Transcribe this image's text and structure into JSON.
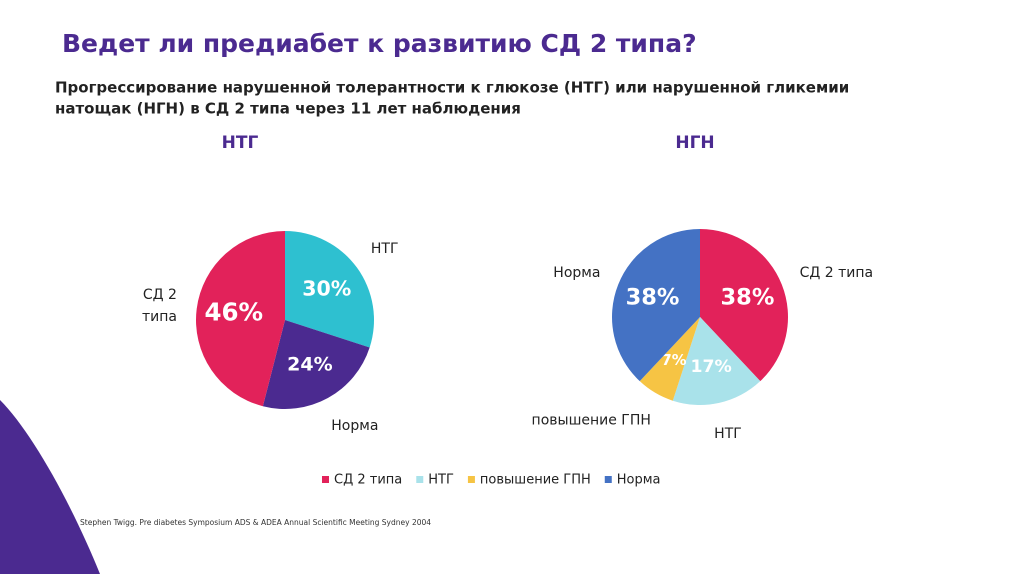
{
  "title": "Ведет ли предиабет к развитию СД 2 типа?",
  "subtitle": [
    "Прогрессирование нарушенной толерантности к глюкозе (НТГ) или нарушенной гликемии",
    "натощак (НГН) в СД 2 типа через 11 лет наблюдения"
  ],
  "chart_data": [
    {
      "type": "pie",
      "title": "НТГ",
      "categories": [
        "НТГ",
        "Норма",
        "СД 2 типа"
      ],
      "values": [
        30,
        24,
        46
      ],
      "value_labels": [
        "30%",
        "24%",
        "46%"
      ],
      "colors": [
        "#2ec0d0",
        "#4b2a90",
        "#e2225a"
      ]
    },
    {
      "type": "pie",
      "title": "НГН",
      "categories": [
        "СД 2 типа",
        "НТГ",
        "повышение ГПН",
        "Норма"
      ],
      "values": [
        38,
        17,
        7,
        38
      ],
      "value_labels": [
        "38%",
        "17%",
        "7%",
        "38%"
      ],
      "colors": [
        "#e2225a",
        "#a9e2ea",
        "#f6c444",
        "#4472c4"
      ]
    }
  ],
  "legend": [
    {
      "name": "СД 2 типа",
      "color": "#e2225a"
    },
    {
      "name": "НТГ",
      "color": "#a9e2ea"
    },
    {
      "name": "повышение ГПН",
      "color": "#f6c444"
    },
    {
      "name": "Норма",
      "color": "#4472c4"
    }
  ],
  "source": "Stephen Twigg. Pre diabetes Symposium ADS & ADEA Annual Scientific Meeting Sydney 2004"
}
